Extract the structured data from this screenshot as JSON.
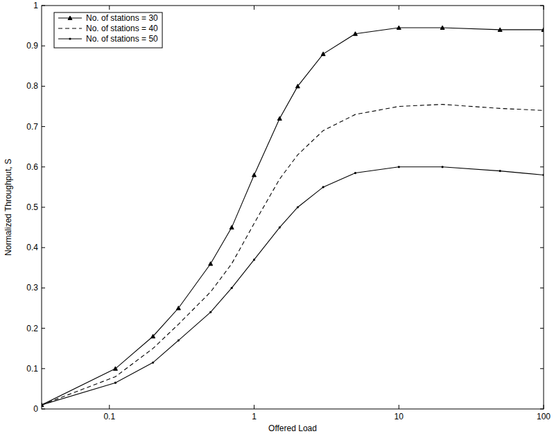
{
  "chart_data": {
    "type": "line",
    "x_label": "Offered Load",
    "y_label": "Normalized Throughput, S",
    "log": "x",
    "grid": false,
    "legend": "top-left",
    "xlim": [
      0.034,
      100
    ],
    "ylim": [
      0,
      1
    ],
    "xticks": [
      0.1,
      1,
      10,
      100
    ],
    "yticks": [
      0,
      0.1,
      0.2,
      0.3,
      0.4,
      0.5,
      0.6,
      0.7,
      0.8,
      0.9,
      1
    ],
    "x": [
      0.034,
      0.11,
      0.2,
      0.3,
      0.5,
      0.7,
      1,
      1.5,
      2,
      3,
      5,
      10,
      20,
      50,
      100
    ],
    "series": [
      {
        "name": "No. of stations = 30",
        "color": "#000000",
        "marker": "triangle",
        "line_style": "solid",
        "values": [
          0.01,
          0.1,
          0.18,
          0.25,
          0.36,
          0.45,
          0.58,
          0.72,
          0.8,
          0.88,
          0.93,
          0.945,
          0.945,
          0.94,
          0.94
        ]
      },
      {
        "name": "No. of stations = 40",
        "color": "#000000",
        "marker": "none",
        "line_style": "dashed",
        "values": [
          0.01,
          0.08,
          0.15,
          0.21,
          0.29,
          0.36,
          0.46,
          0.57,
          0.63,
          0.69,
          0.73,
          0.75,
          0.755,
          0.745,
          0.74
        ]
      },
      {
        "name": "No. of stations = 50",
        "color": "#000000",
        "marker": "point",
        "line_style": "solid",
        "values": [
          0.01,
          0.065,
          0.115,
          0.17,
          0.24,
          0.3,
          0.37,
          0.45,
          0.5,
          0.55,
          0.585,
          0.6,
          0.6,
          0.59,
          0.58
        ]
      }
    ]
  }
}
